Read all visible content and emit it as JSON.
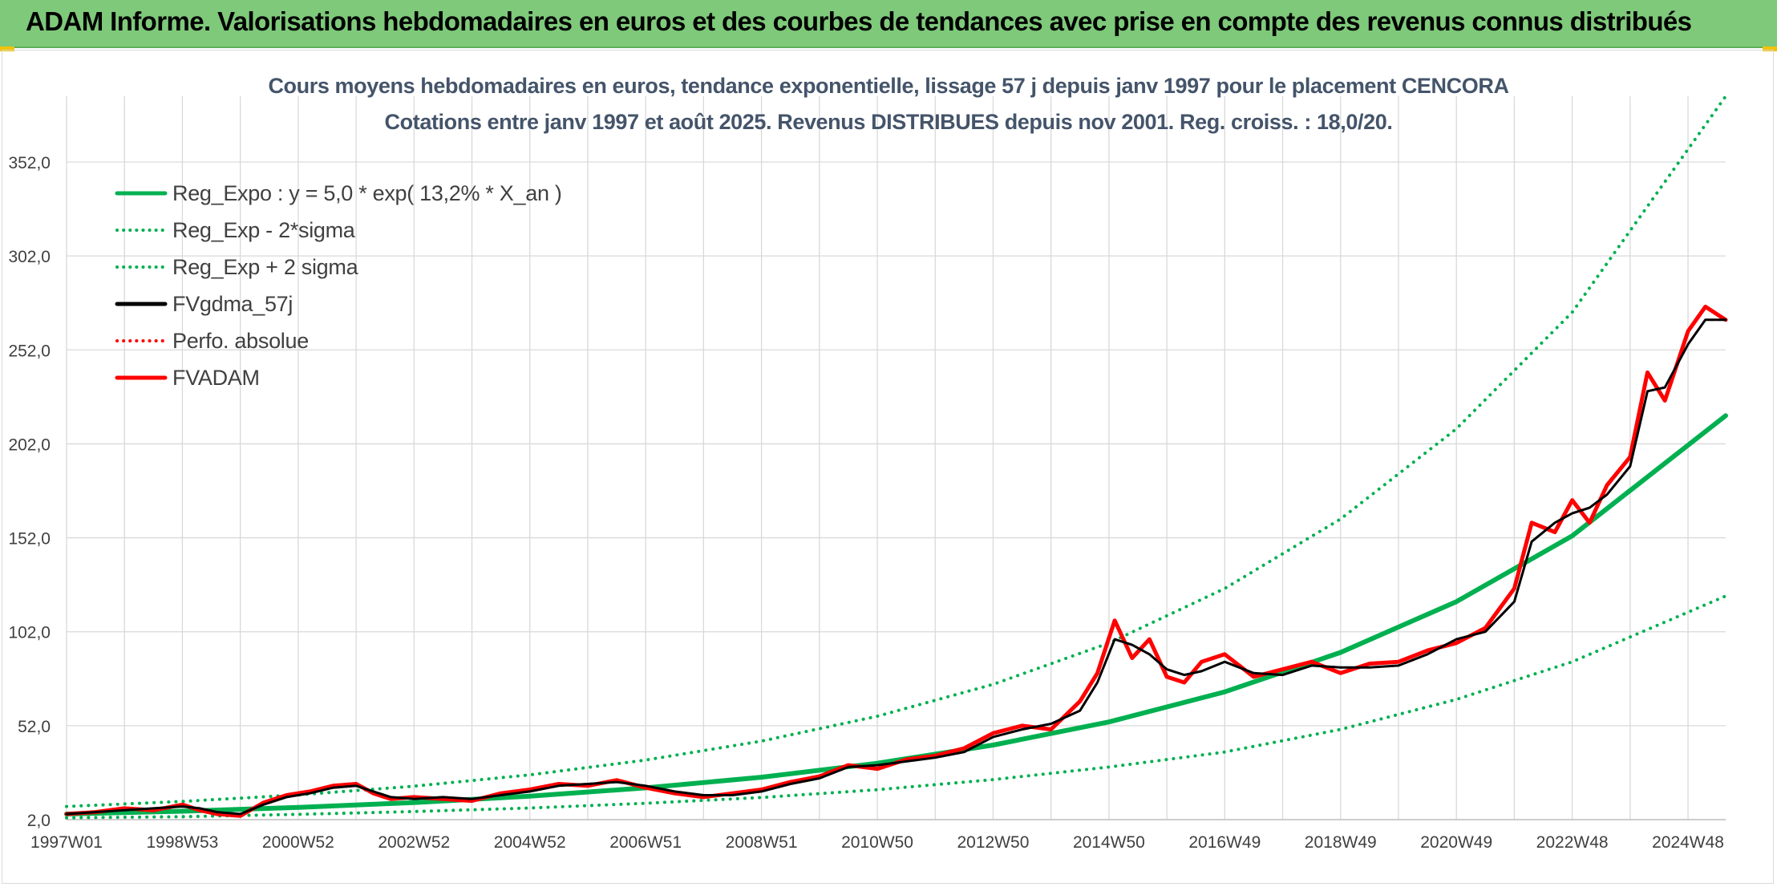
{
  "header": {
    "title": "ADAM Informe. Valorisations hebdomadaires en euros et des courbes de tendances avec prise en compte des revenus connus distribués"
  },
  "chart_data": {
    "type": "line",
    "title": "Cours moyens hebdomadaires en euros, tendance exponentielle, lissage 57 j depuis janv 1997 pour le placement CENCORA",
    "subtitle": "Cotations entre janv 1997 et août 2025. Revenus DISTRIBUES depuis nov 2001. Reg. croiss. : 18,0/20.",
    "xlabel": "",
    "ylabel": "",
    "ylim": [
      2,
      387
    ],
    "yticks": [
      "2,0",
      "52,0",
      "102,0",
      "152,0",
      "202,0",
      "252,0",
      "302,0",
      "352,0"
    ],
    "ytick_values": [
      2,
      52,
      102,
      152,
      202,
      252,
      302,
      352
    ],
    "xlim": [
      1997.0,
      2025.65
    ],
    "xticks": [
      "1997W01",
      "1998W53",
      "2000W52",
      "2002W52",
      "2004W52",
      "2006W51",
      "2008W51",
      "2010W50",
      "2012W50",
      "2014W50",
      "2016W49",
      "2018W49",
      "2020W49",
      "2022W48",
      "2024W48"
    ],
    "xtick_years": [
      1997.0,
      1999.0,
      2001.0,
      2003.0,
      2005.0,
      2007.0,
      2009.0,
      2011.0,
      2013.0,
      2015.0,
      2017.0,
      2019.0,
      2021.0,
      2023.0,
      2025.0
    ],
    "grid": true,
    "legend_position": "top-left",
    "series": [
      {
        "name": "Reg_Expo : y = 5,0 * exp( 13,2% *  X_an )",
        "color": "#00b050",
        "style": "solid",
        "width": 6,
        "x": [
          1997.0,
          1999.0,
          2001.0,
          2003.0,
          2005.0,
          2007.0,
          2009.0,
          2011.0,
          2013.0,
          2015.0,
          2017.0,
          2019.0,
          2021.0,
          2023.0,
          2025.65
        ],
        "values": [
          5.0,
          6.5,
          8.5,
          11.1,
          14.5,
          18.9,
          24.6,
          32.0,
          41.7,
          54.0,
          70.0,
          91.0,
          118.0,
          153.0,
          217.0
        ]
      },
      {
        "name": "Reg_Exp - 2*sigma",
        "color": "#00b050",
        "style": "dotted",
        "width": 4,
        "x": [
          1997.0,
          1999.0,
          2001.0,
          2003.0,
          2005.0,
          2007.0,
          2009.0,
          2011.0,
          2013.0,
          2015.0,
          2017.0,
          2019.0,
          2021.0,
          2023.0,
          2025.65
        ],
        "values": [
          3.0,
          3.6,
          4.8,
          6.3,
          8.2,
          10.7,
          13.8,
          17.9,
          23.3,
          30.0,
          38.0,
          50.0,
          66.0,
          86.0,
          121.0
        ]
      },
      {
        "name": "Reg_Exp + 2 sigma",
        "color": "#00b050",
        "style": "dotted",
        "width": 4,
        "x": [
          1997.0,
          1999.0,
          2001.0,
          2003.0,
          2005.0,
          2007.0,
          2009.0,
          2011.0,
          2013.0,
          2015.0,
          2017.0,
          2019.0,
          2021.0,
          2023.0,
          2025.65
        ],
        "values": [
          9.0,
          11.7,
          15.2,
          19.8,
          25.8,
          33.7,
          43.8,
          57.0,
          74.0,
          96.0,
          125.0,
          162.0,
          210.0,
          272.0,
          387.0
        ]
      },
      {
        "name": "FVgdma_57j",
        "color": "#000000",
        "style": "solid",
        "width": 4,
        "x": [
          1997.0,
          1997.5,
          1998.0,
          1998.5,
          1999.0,
          1999.3,
          1999.6,
          2000.0,
          2000.4,
          2000.8,
          2001.2,
          2001.6,
          2002.0,
          2002.3,
          2002.6,
          2003.0,
          2003.5,
          2004.0,
          2004.5,
          2005.0,
          2005.5,
          2006.0,
          2006.5,
          2007.0,
          2007.5,
          2008.0,
          2008.5,
          2009.0,
          2009.5,
          2010.0,
          2010.5,
          2011.0,
          2011.5,
          2012.0,
          2012.5,
          2013.0,
          2013.5,
          2014.0,
          2014.5,
          2014.8,
          2015.1,
          2015.4,
          2015.7,
          2016.0,
          2016.3,
          2016.6,
          2017.0,
          2017.5,
          2018.0,
          2018.5,
          2019.0,
          2019.5,
          2020.0,
          2020.5,
          2021.0,
          2021.5,
          2022.0,
          2022.3,
          2022.7,
          2023.0,
          2023.3,
          2023.6,
          2024.0,
          2024.3,
          2024.6,
          2025.0,
          2025.3,
          2025.65
        ],
        "values": [
          5,
          6,
          7,
          8,
          9,
          8,
          6,
          5,
          10,
          14,
          16,
          19,
          20,
          17,
          14,
          13,
          14,
          13,
          15,
          17,
          20,
          21,
          22,
          20,
          17,
          15,
          15,
          17,
          21,
          24,
          30,
          31,
          33,
          35,
          38,
          46,
          50,
          53,
          60,
          75,
          98,
          95,
          90,
          82,
          79,
          81,
          86,
          80,
          79,
          84,
          83,
          83,
          84,
          90,
          98,
          102,
          118,
          150,
          160,
          165,
          168,
          175,
          190,
          230,
          232,
          255,
          268,
          268
        ]
      },
      {
        "name": "Perfo. absolue",
        "color": "#ff0000",
        "style": "dotted",
        "width": 3,
        "x": [
          1997.0,
          1997.5,
          1998.0,
          1998.5,
          1999.0,
          1999.3,
          1999.6,
          2000.0,
          2000.4,
          2000.8,
          2001.2,
          2001.6,
          2002.0,
          2002.3,
          2002.6,
          2003.0,
          2003.5,
          2004.0,
          2004.5,
          2005.0,
          2005.5,
          2006.0,
          2006.5,
          2007.0,
          2007.5,
          2008.0,
          2008.5,
          2009.0,
          2009.5,
          2010.0,
          2010.5,
          2011.0,
          2011.5,
          2012.0,
          2012.5,
          2013.0,
          2013.5,
          2014.0,
          2014.5,
          2014.8,
          2015.1,
          2015.4,
          2015.7,
          2016.0,
          2016.3,
          2016.6,
          2017.0,
          2017.5,
          2018.0,
          2018.5,
          2019.0,
          2019.5,
          2020.0,
          2020.5,
          2021.0,
          2021.5,
          2022.0,
          2022.3,
          2022.7,
          2023.0,
          2023.3,
          2023.6,
          2024.0,
          2024.3,
          2024.6,
          2025.0,
          2025.3,
          2025.65
        ],
        "values": [
          5,
          6,
          7,
          8,
          9,
          8,
          6,
          5,
          10,
          14,
          16,
          19,
          20,
          17,
          14,
          13,
          14,
          13,
          15,
          17,
          20,
          21,
          22,
          20,
          17,
          15,
          15,
          17,
          21,
          24,
          30,
          31,
          33,
          35,
          38,
          46,
          50,
          53,
          60,
          75,
          98,
          95,
          90,
          82,
          79,
          81,
          86,
          80,
          79,
          84,
          83,
          83,
          84,
          90,
          98,
          102,
          118,
          150,
          160,
          165,
          168,
          175,
          190,
          230,
          232,
          255,
          268,
          268
        ]
      },
      {
        "name": "FVADAM",
        "color": "#ff0000",
        "style": "solid",
        "width": 6,
        "x": [
          1997.0,
          1997.5,
          1998.0,
          1998.5,
          1999.0,
          1999.3,
          1999.6,
          2000.0,
          2000.4,
          2000.8,
          2001.2,
          2001.6,
          2002.0,
          2002.3,
          2002.6,
          2003.0,
          2003.5,
          2004.0,
          2004.5,
          2005.0,
          2005.5,
          2006.0,
          2006.5,
          2007.0,
          2007.5,
          2008.0,
          2008.5,
          2009.0,
          2009.5,
          2010.0,
          2010.5,
          2011.0,
          2011.5,
          2012.0,
          2012.5,
          2013.0,
          2013.5,
          2014.0,
          2014.5,
          2014.8,
          2015.1,
          2015.4,
          2015.7,
          2016.0,
          2016.3,
          2016.6,
          2017.0,
          2017.5,
          2018.0,
          2018.5,
          2019.0,
          2019.5,
          2020.0,
          2020.5,
          2021.0,
          2021.5,
          2022.0,
          2022.3,
          2022.7,
          2023.0,
          2023.3,
          2023.6,
          2024.0,
          2024.3,
          2024.6,
          2025.0,
          2025.3,
          2025.65
        ],
        "values": [
          5,
          6,
          8,
          7,
          10,
          7,
          5,
          4,
          11,
          15,
          17,
          20,
          21,
          16,
          13,
          14,
          13,
          12,
          16,
          18,
          21,
          20,
          23,
          19,
          16,
          14,
          16,
          18,
          22,
          25,
          31,
          29,
          34,
          36,
          40,
          48,
          52,
          50,
          65,
          80,
          108,
          88,
          98,
          78,
          75,
          86,
          90,
          78,
          82,
          86,
          80,
          85,
          86,
          92,
          96,
          104,
          125,
          160,
          155,
          172,
          160,
          180,
          195,
          240,
          225,
          262,
          275,
          268
        ]
      }
    ]
  }
}
